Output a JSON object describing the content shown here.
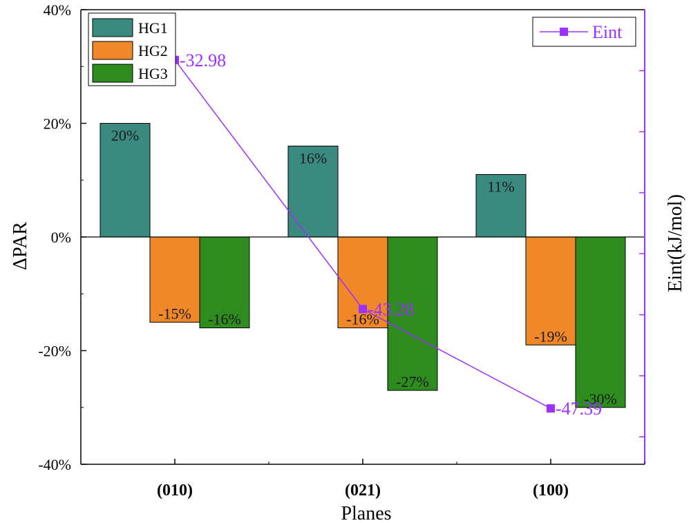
{
  "chart_data": {
    "type": "bar",
    "xlabel": "Planes",
    "ylabel": "ΔPAR",
    "y2label": "Eint(kJ/mol)",
    "categories": [
      "(010)",
      "(021)",
      "(100)"
    ],
    "ylim": [
      -0.4,
      0.4
    ],
    "yticks": [
      "-40%",
      "-20%",
      "0%",
      "20%",
      "40%"
    ],
    "series": [
      {
        "name": "HG1",
        "values": [
          0.2,
          0.16,
          0.11
        ],
        "labels": [
          "20%",
          "16%",
          "11%"
        ],
        "color": "#3a8a80"
      },
      {
        "name": "HG2",
        "values": [
          -0.15,
          -0.16,
          -0.19
        ],
        "labels": [
          "-15%",
          "-16%",
          "-19%"
        ],
        "color": "#f0882a"
      },
      {
        "name": "HG3",
        "values": [
          -0.16,
          -0.27,
          -0.3
        ],
        "labels": [
          "-16%",
          "-27%",
          "-30%"
        ],
        "color": "#2e8b1e"
      }
    ],
    "line_series": {
      "name": "Eint",
      "axis": "right",
      "values": [
        -32.98,
        -43.28,
        -47.39
      ],
      "labels": [
        "-32.98",
        "-43.28",
        "-47.39"
      ],
      "y2lim": [
        -30.9,
        -49.7
      ],
      "color": "#9b30ff"
    },
    "legend_bars": "top-left",
    "legend_line": "top-right"
  }
}
